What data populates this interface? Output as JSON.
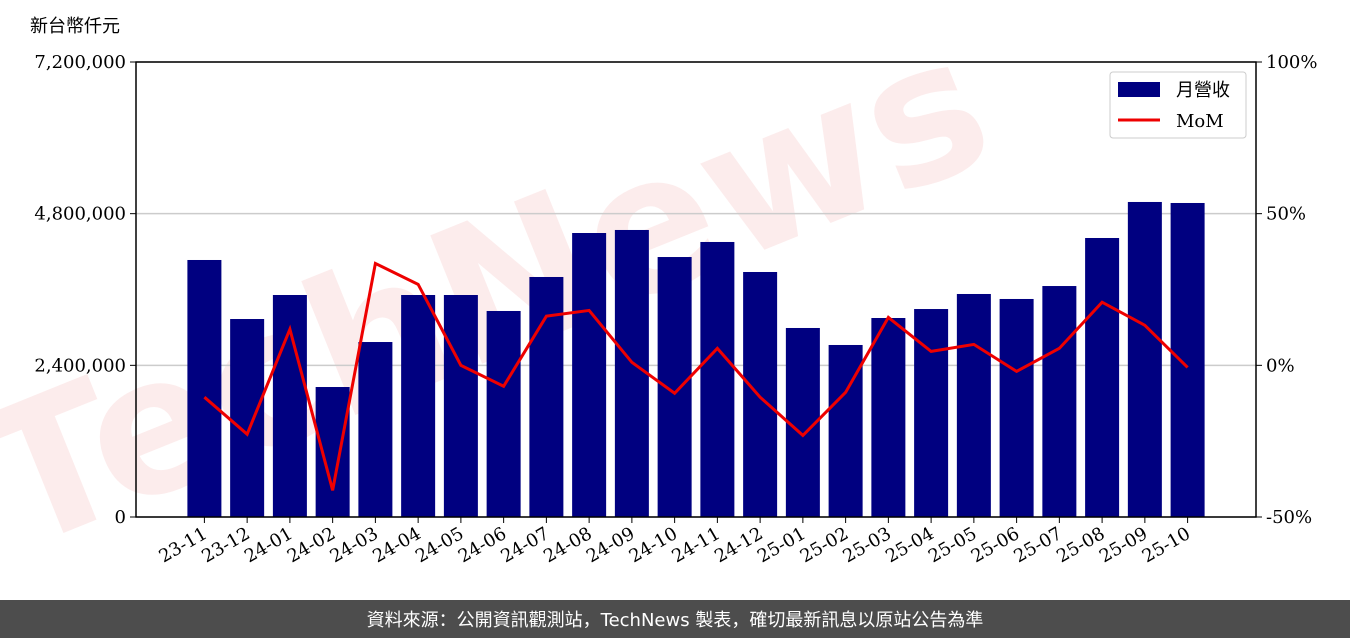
{
  "chart_data": {
    "type": "bar-line",
    "y_label": "新台幣仟元",
    "categories": [
      "23-11",
      "23-12",
      "24-01",
      "24-02",
      "24-03",
      "24-04",
      "24-05",
      "24-06",
      "24-07",
      "24-08",
      "24-09",
      "24-10",
      "24-11",
      "24-12",
      "25-01",
      "25-02",
      "25-03",
      "25-04",
      "25-05",
      "25-06",
      "25-07",
      "25-08",
      "25-09",
      "25-10"
    ],
    "series": [
      {
        "name": "月營收",
        "color": "#000080",
        "type": "bar",
        "values": [
          4067000,
          3133000,
          3513000,
          2057000,
          2769000,
          3513000,
          3513000,
          3260000,
          3798000,
          4494000,
          4542000,
          4114000,
          4352000,
          3877000,
          2991000,
          2722000,
          3149000,
          3291000,
          3529000,
          3450000,
          3655000,
          4415000,
          4985000,
          4969000
        ]
      },
      {
        "name": "MoM",
        "color": "#ee0000",
        "type": "line",
        "axis": "y2",
        "values": [
          -10.5,
          -22.7,
          11.9,
          -41.2,
          33.6,
          26.7,
          0,
          -6.9,
          16.2,
          18.1,
          1.0,
          -9.2,
          5.6,
          -10.5,
          -23.1,
          -8.9,
          15.8,
          4.6,
          6.9,
          -2.0,
          5.6,
          20.8,
          13.2,
          -0.7
        ]
      }
    ],
    "ylim": [
      0,
      7200000
    ],
    "yticks": [
      0,
      {
        "value": 2400000,
        "label": "2,400,000"
      },
      {
        "value": 4800000,
        "label": "4,800,000"
      },
      {
        "value": 7200000,
        "label": "7,200,000"
      }
    ],
    "y2lim": [
      -50,
      100
    ],
    "y2ticks": [
      {
        "value": -50,
        "label": "-50%"
      },
      {
        "value": 0,
        "label": "0%"
      },
      {
        "value": 50,
        "label": "50%"
      },
      {
        "value": 100,
        "label": "100%"
      }
    ],
    "grid": true,
    "legend": "upper right",
    "watermark": "TechNews",
    "footer": "資料來源：公開資訊觀測站，TechNews 製表，確切最新訊息以原站公告為準"
  }
}
